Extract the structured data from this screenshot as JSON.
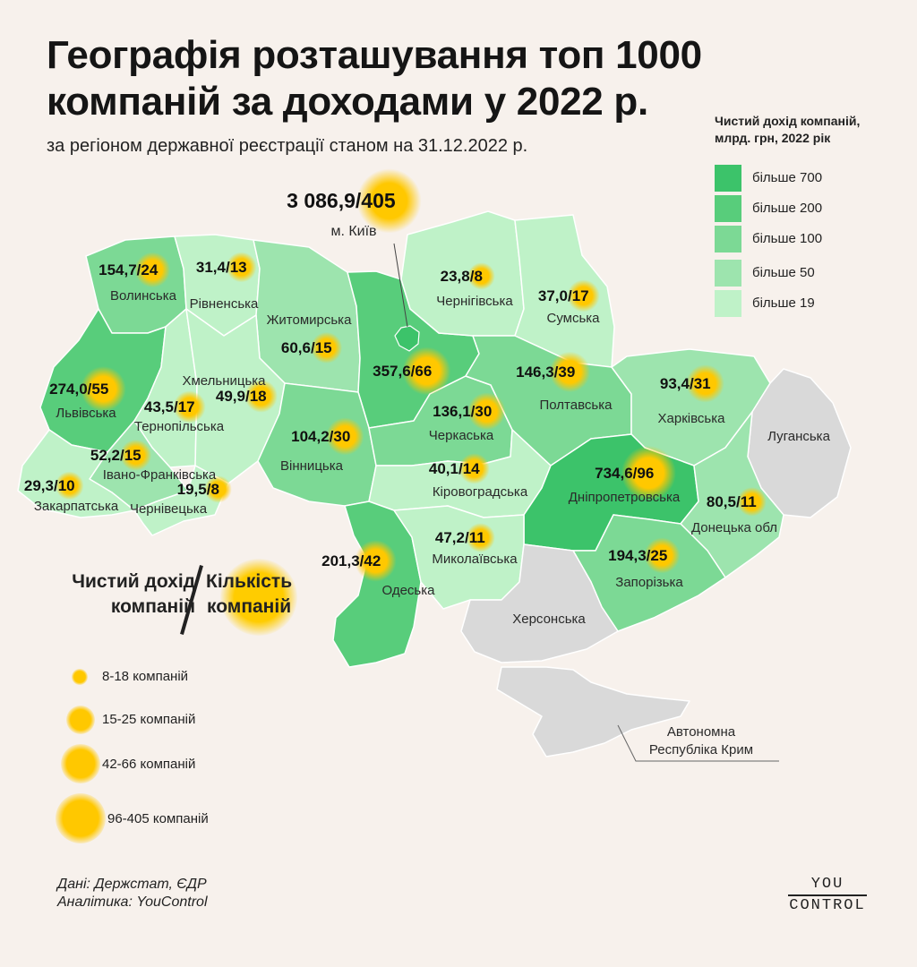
{
  "title_line1": "Географія розташування топ 1000",
  "title_line2": "компаній за доходами у 2022 р.",
  "subtitle": "за регіоном державної реєстрації станом на 31.12.2022 р.",
  "legend": {
    "title_line1": "Чистий дохід компаній,",
    "title_line2": "млрд. грн, 2022 рік",
    "items": [
      {
        "label": "більше 700",
        "color": "#3cc36a"
      },
      {
        "label": "більше 200",
        "color": "#58cd7b"
      },
      {
        "label": "більше 100",
        "color": "#7cd995"
      },
      {
        "label": "більше 50",
        "color": "#9de4ae"
      },
      {
        "label": "більше 19",
        "color": "#bff2c8"
      }
    ]
  },
  "no_data_color": "#d9d9d9",
  "bubble_color": "#ffc800",
  "regions": [
    {
      "id": "volyn",
      "name": "Волинська",
      "revenue": "154,7",
      "companies": "24",
      "count": 24,
      "color": "#7cd995"
    },
    {
      "id": "rivne",
      "name": "Рівненська",
      "revenue": "31,4",
      "companies": "13",
      "count": 13,
      "color": "#bff2c8"
    },
    {
      "id": "zhytomyr",
      "name": "Житомирська",
      "revenue": "60,6",
      "companies": "15",
      "count": 15,
      "color": "#9de4ae"
    },
    {
      "id": "kyiv",
      "name": "м. Київ",
      "revenue": "3 086,9",
      "companies": "405",
      "count": 405,
      "color": "#3cc36a"
    },
    {
      "id": "kyivobl",
      "name": "",
      "revenue": "357,6",
      "companies": "66",
      "count": 66,
      "color": "#58cd7b"
    },
    {
      "id": "chernihiv",
      "name": "Чернігівська",
      "revenue": "23,8",
      "companies": "8",
      "count": 8,
      "color": "#bff2c8"
    },
    {
      "id": "sumy",
      "name": "Сумська",
      "revenue": "37,0",
      "companies": "17",
      "count": 17,
      "color": "#bff2c8"
    },
    {
      "id": "lviv",
      "name": "Львівська",
      "revenue": "274,0",
      "companies": "55",
      "count": 55,
      "color": "#58cd7b"
    },
    {
      "id": "ternopil",
      "name": "Тернопільська",
      "revenue": "43,5",
      "companies": "17",
      "count": 17,
      "color": "#bff2c8"
    },
    {
      "id": "khmelnytskyi",
      "name": "Хмельницька",
      "revenue": "49,9",
      "companies": "18",
      "count": 18,
      "color": "#bff2c8"
    },
    {
      "id": "vinnytsia",
      "name": "Вінницька",
      "revenue": "104,2",
      "companies": "30",
      "count": 30,
      "color": "#7cd995"
    },
    {
      "id": "cherkasy",
      "name": "Черкаська",
      "revenue": "136,1",
      "companies": "30",
      "count": 30,
      "color": "#7cd995"
    },
    {
      "id": "poltava",
      "name": "Полтавська",
      "revenue": "146,3",
      "companies": "39",
      "count": 39,
      "color": "#7cd995"
    },
    {
      "id": "kharkiv",
      "name": "Харківська",
      "revenue": "93,4",
      "companies": "31",
      "count": 31,
      "color": "#9de4ae"
    },
    {
      "id": "luhansk",
      "name": "Луганська",
      "revenue": "",
      "companies": "",
      "count": 0,
      "color": "#d9d9d9"
    },
    {
      "id": "ivanofrankivsk",
      "name": "Івано-Франківська",
      "revenue": "52,2",
      "companies": "15",
      "count": 15,
      "color": "#9de4ae"
    },
    {
      "id": "zakarpattia",
      "name": "Закарпатська",
      "revenue": "29,3",
      "companies": "10",
      "count": 10,
      "color": "#bff2c8"
    },
    {
      "id": "chernivtsi",
      "name": "Чернівецька",
      "revenue": "19,5",
      "companies": "8",
      "count": 8,
      "color": "#bff2c8"
    },
    {
      "id": "kirovohrad",
      "name": "Кіровоградська",
      "revenue": "40,1",
      "companies": "14",
      "count": 14,
      "color": "#bff2c8"
    },
    {
      "id": "dnipro",
      "name": "Дніпропетровська",
      "revenue": "734,6",
      "companies": "96",
      "count": 96,
      "color": "#3cc36a"
    },
    {
      "id": "donetsk",
      "name": "Донецька обл",
      "revenue": "80,5",
      "companies": "11",
      "count": 11,
      "color": "#9de4ae"
    },
    {
      "id": "odesa",
      "name": "Одеська",
      "revenue": "201,3",
      "companies": "42",
      "count": 42,
      "color": "#58cd7b"
    },
    {
      "id": "mykolaiv",
      "name": "Миколаївська",
      "revenue": "47,2",
      "companies": "11",
      "count": 11,
      "color": "#bff2c8"
    },
    {
      "id": "zaporizhzhia",
      "name": "Запорізька",
      "revenue": "194,3",
      "companies": "25",
      "count": 25,
      "color": "#7cd995"
    },
    {
      "id": "kherson",
      "name": "Херсонська",
      "revenue": "",
      "companies": "",
      "count": 0,
      "color": "#d9d9d9"
    },
    {
      "id": "crimea",
      "name": "Автономна Республіка Крим",
      "name_line1": "Автономна",
      "name_line2": "Республіка Крим",
      "revenue": "",
      "companies": "",
      "count": 0,
      "color": "#d9d9d9"
    }
  ],
  "key": {
    "left_line1": "Чистий дохід",
    "left_line2": "компаній",
    "right_line1": "Кількість",
    "right_line2": "компаній"
  },
  "size_legend": [
    {
      "label": "8-18 компаній"
    },
    {
      "label": "15-25 компаній"
    },
    {
      "label": "42-66 компаній"
    },
    {
      "label": "96-405 компаній"
    }
  ],
  "source_line1": "Дані: Держстат, ЄДР",
  "source_line2": "Аналітика: YouControl",
  "logo_line1": "YOU",
  "logo_line2": "CONTROL"
}
